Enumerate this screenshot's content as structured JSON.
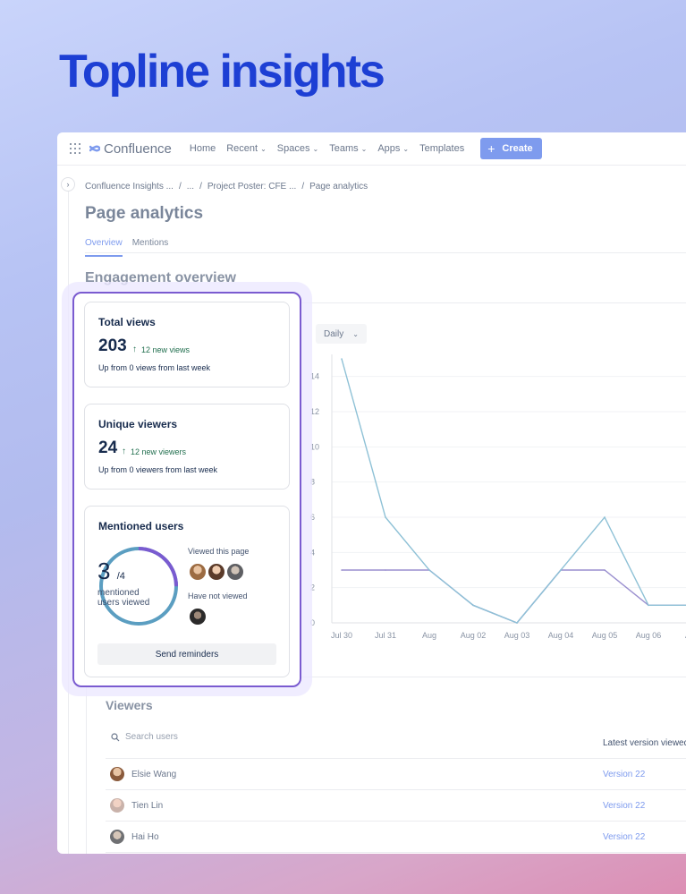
{
  "hero": {
    "title": "Topline insights"
  },
  "app": {
    "name": "Confluence",
    "nav": [
      {
        "label": "Home",
        "dropdown": false
      },
      {
        "label": "Recent",
        "dropdown": true
      },
      {
        "label": "Spaces",
        "dropdown": true
      },
      {
        "label": "Teams",
        "dropdown": true
      },
      {
        "label": "Apps",
        "dropdown": true
      },
      {
        "label": "Templates",
        "dropdown": false
      }
    ],
    "create_label": "Create"
  },
  "breadcrumb": [
    "Confluence Insights ...",
    "...",
    "Project Poster: CFE ...",
    "Page analytics"
  ],
  "page": {
    "title": "Page analytics",
    "tabs": [
      {
        "label": "Overview",
        "active": true
      },
      {
        "label": "Mentions",
        "active": false
      }
    ],
    "section_title": "Engagement overview",
    "period_select": "Daily"
  },
  "metrics": {
    "total_views": {
      "title": "Total views",
      "value": "203",
      "delta": "12 new views",
      "sub": "Up from 0 views from last week"
    },
    "unique_viewers": {
      "title": "Unique viewers",
      "value": "24",
      "delta": "12 new viewers",
      "sub": "Up from 0 viewers from last week"
    },
    "mentioned_users": {
      "title": "Mentioned users",
      "viewed": 3,
      "viewed_display": "3",
      "total_display": "/4",
      "total": 4,
      "ring_label_1": "mentioned",
      "ring_label_2": "users viewed",
      "viewed_heading": "Viewed this page",
      "not_viewed_heading": "Have not viewed",
      "button": "Send reminders"
    }
  },
  "chart_data": {
    "type": "line",
    "categories": [
      "Jul 30",
      "Jul 31",
      "Aug",
      "Aug 02",
      "Aug 03",
      "Aug 04",
      "Aug 05",
      "Aug 06",
      "Aug"
    ],
    "series": [
      {
        "name": "Total views",
        "values": [
          15,
          6,
          3,
          1,
          0,
          3,
          6,
          1,
          1
        ],
        "color": "#8ec1d6"
      },
      {
        "name": "Unique viewers",
        "values": [
          3,
          3,
          3,
          1,
          0,
          3,
          3,
          1,
          1
        ],
        "color": "#9a8fcf"
      }
    ],
    "yticks": [
      0,
      2,
      4,
      6,
      8,
      10,
      12,
      14
    ],
    "ylim": [
      0,
      15
    ],
    "grid": true
  },
  "viewers": {
    "title": "Viewers",
    "search_placeholder": "Search users",
    "column_header": "Latest version viewed",
    "rows": [
      {
        "name": "Elsie Wang",
        "version": "Version 22"
      },
      {
        "name": "Tien Lin",
        "version": "Version 22"
      },
      {
        "name": "Hai Ho",
        "version": "Version 22"
      }
    ]
  },
  "colors": {
    "accent": "#7e9bee",
    "highlight": "#7a5bd0",
    "positive": "#216e4e",
    "ring_primary": "#5b9ec1",
    "ring_secondary": "#7a5bd0"
  }
}
